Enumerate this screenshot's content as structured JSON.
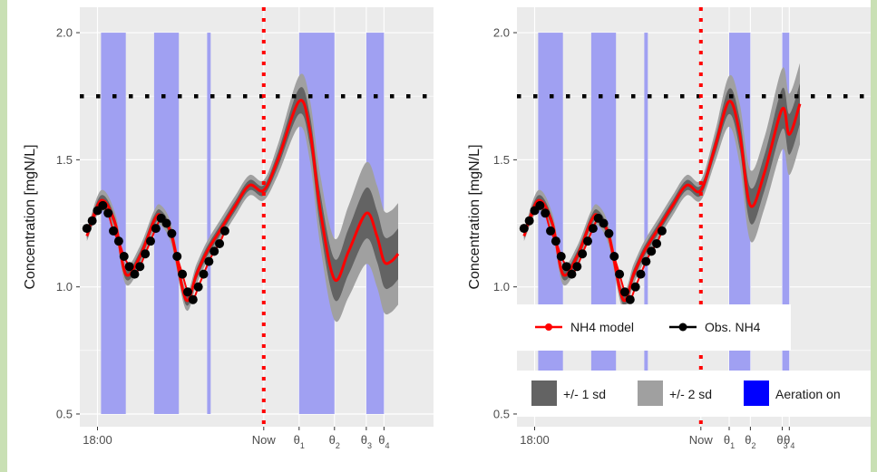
{
  "chart_data": [
    {
      "type": "line",
      "ylabel": "Concentration [mgN/L]",
      "ylim": [
        0.45,
        2.1
      ],
      "yticks": [
        0.5,
        1.0,
        1.5,
        2.0
      ],
      "ytick_labels": [
        "0.5",
        "1.0",
        "1.5",
        "2.0"
      ],
      "xlim": [
        0,
        100
      ],
      "xticks": [
        {
          "x": 5,
          "label": "18:00",
          "sub": ""
        },
        {
          "x": 52,
          "label": "Now",
          "sub": ""
        },
        {
          "x": 62,
          "label": "θ",
          "sub": "1"
        },
        {
          "x": 72,
          "label": "θ",
          "sub": "2"
        },
        {
          "x": 81,
          "label": "θ",
          "sub": "3"
        },
        {
          "x": 86,
          "label": "θ",
          "sub": "4"
        }
      ],
      "threshold": 1.75,
      "now_x": 52,
      "aeration_on": [
        [
          6,
          13
        ],
        [
          21,
          28
        ],
        [
          36,
          37
        ],
        [
          62,
          72
        ],
        [
          81,
          86
        ]
      ],
      "model": {
        "x": [
          2,
          6,
          10,
          13,
          17,
          21,
          23,
          26,
          30,
          33,
          36,
          40,
          44,
          48,
          52,
          56,
          62,
          65,
          68,
          72,
          76,
          81,
          84,
          86,
          88,
          90
        ],
        "y": [
          1.2,
          1.34,
          1.25,
          1.05,
          1.12,
          1.26,
          1.28,
          1.2,
          0.95,
          1.05,
          1.14,
          1.23,
          1.32,
          1.4,
          1.38,
          1.5,
          1.73,
          1.62,
          1.3,
          1.03,
          1.14,
          1.29,
          1.2,
          1.1,
          1.1,
          1.13
        ]
      },
      "sd1": [
        0.01,
        0.02,
        0.02,
        0.02,
        0.02,
        0.02,
        0.02,
        0.02,
        0.02,
        0.02,
        0.02,
        0.02,
        0.02,
        0.02,
        0.02,
        0.03,
        0.05,
        0.06,
        0.07,
        0.08,
        0.09,
        0.1,
        0.1,
        0.1,
        0.1,
        0.1
      ],
      "observations": {
        "x": [
          2,
          3.5,
          5,
          6.5,
          8,
          9.5,
          11,
          12.5,
          14,
          15.5,
          17,
          18.5,
          20,
          21.5,
          23,
          24.5,
          26,
          27.5,
          29,
          30.5,
          32,
          33.5,
          35,
          36.5,
          38,
          39.5,
          41
        ],
        "y": [
          1.23,
          1.26,
          1.3,
          1.32,
          1.29,
          1.22,
          1.18,
          1.12,
          1.08,
          1.05,
          1.08,
          1.13,
          1.18,
          1.23,
          1.27,
          1.25,
          1.21,
          1.12,
          1.05,
          0.98,
          0.95,
          1.0,
          1.05,
          1.1,
          1.14,
          1.17,
          1.22
        ]
      }
    },
    {
      "type": "line",
      "ylabel": "Concentration [mgN/L]",
      "ylim": [
        0.45,
        2.1
      ],
      "yticks": [
        0.5,
        1.0,
        1.5,
        2.0
      ],
      "ytick_labels": [
        "0.5",
        "1.0",
        "1.5",
        "2.0"
      ],
      "xlim": [
        0,
        100
      ],
      "xticks": [
        {
          "x": 5,
          "label": "18:00",
          "sub": ""
        },
        {
          "x": 52,
          "label": "Now",
          "sub": ""
        },
        {
          "x": 60,
          "label": "θ",
          "sub": "1"
        },
        {
          "x": 66,
          "label": "θ",
          "sub": "2"
        },
        {
          "x": 75,
          "label": "θ",
          "sub": "3"
        },
        {
          "x": 77,
          "label": "θ",
          "sub": "4"
        }
      ],
      "threshold": 1.75,
      "now_x": 52,
      "aeration_on": [
        [
          6,
          13
        ],
        [
          21,
          28
        ],
        [
          36,
          37
        ],
        [
          60,
          66
        ],
        [
          75,
          77
        ]
      ],
      "model": {
        "x": [
          2,
          6,
          10,
          13,
          17,
          21,
          23,
          26,
          30,
          33,
          36,
          40,
          44,
          48,
          52,
          56,
          60,
          63,
          66,
          70,
          75,
          77,
          80
        ],
        "y": [
          1.2,
          1.34,
          1.25,
          1.05,
          1.12,
          1.26,
          1.28,
          1.2,
          0.95,
          1.05,
          1.14,
          1.23,
          1.32,
          1.4,
          1.38,
          1.55,
          1.73,
          1.6,
          1.32,
          1.45,
          1.7,
          1.6,
          1.72
        ]
      },
      "sd1": [
        0.01,
        0.02,
        0.02,
        0.02,
        0.02,
        0.02,
        0.02,
        0.02,
        0.02,
        0.02,
        0.02,
        0.02,
        0.02,
        0.02,
        0.02,
        0.03,
        0.05,
        0.06,
        0.07,
        0.07,
        0.08,
        0.08,
        0.08
      ],
      "observations": {
        "x": [
          2,
          3.5,
          5,
          6.5,
          8,
          9.5,
          11,
          12.5,
          14,
          15.5,
          17,
          18.5,
          20,
          21.5,
          23,
          24.5,
          26,
          27.5,
          29,
          30.5,
          32,
          33.5,
          35,
          36.5,
          38,
          39.5,
          41
        ],
        "y": [
          1.23,
          1.26,
          1.3,
          1.32,
          1.29,
          1.22,
          1.18,
          1.12,
          1.08,
          1.05,
          1.08,
          1.13,
          1.18,
          1.23,
          1.27,
          1.25,
          1.21,
          1.12,
          1.05,
          0.98,
          0.95,
          1.0,
          1.05,
          1.1,
          1.14,
          1.17,
          1.22
        ]
      }
    }
  ],
  "legend": {
    "lines": [
      {
        "label": "NH4 model",
        "color": "#ff0000",
        "symbol": "line-dot"
      },
      {
        "label": "Obs. NH4",
        "color": "#000000",
        "symbol": "line-dot"
      }
    ],
    "fills": [
      {
        "label": "+/- 1 sd",
        "color": "#636363"
      },
      {
        "label": "+/- 2 sd",
        "color": "#a0a0a0"
      },
      {
        "label": "Aeration on",
        "color": "#0000ff"
      }
    ]
  },
  "colors": {
    "panel_bg": "#ebebeb",
    "grid": "#ffffff",
    "aeration": "#a0a0f2",
    "sd2": "#a0a0a0",
    "sd1": "#636363",
    "model": "#ff0000",
    "obs": "#000000",
    "threshold": "#000000",
    "now_line": "#ff0000",
    "outer_bg": "#c9e0b4"
  }
}
